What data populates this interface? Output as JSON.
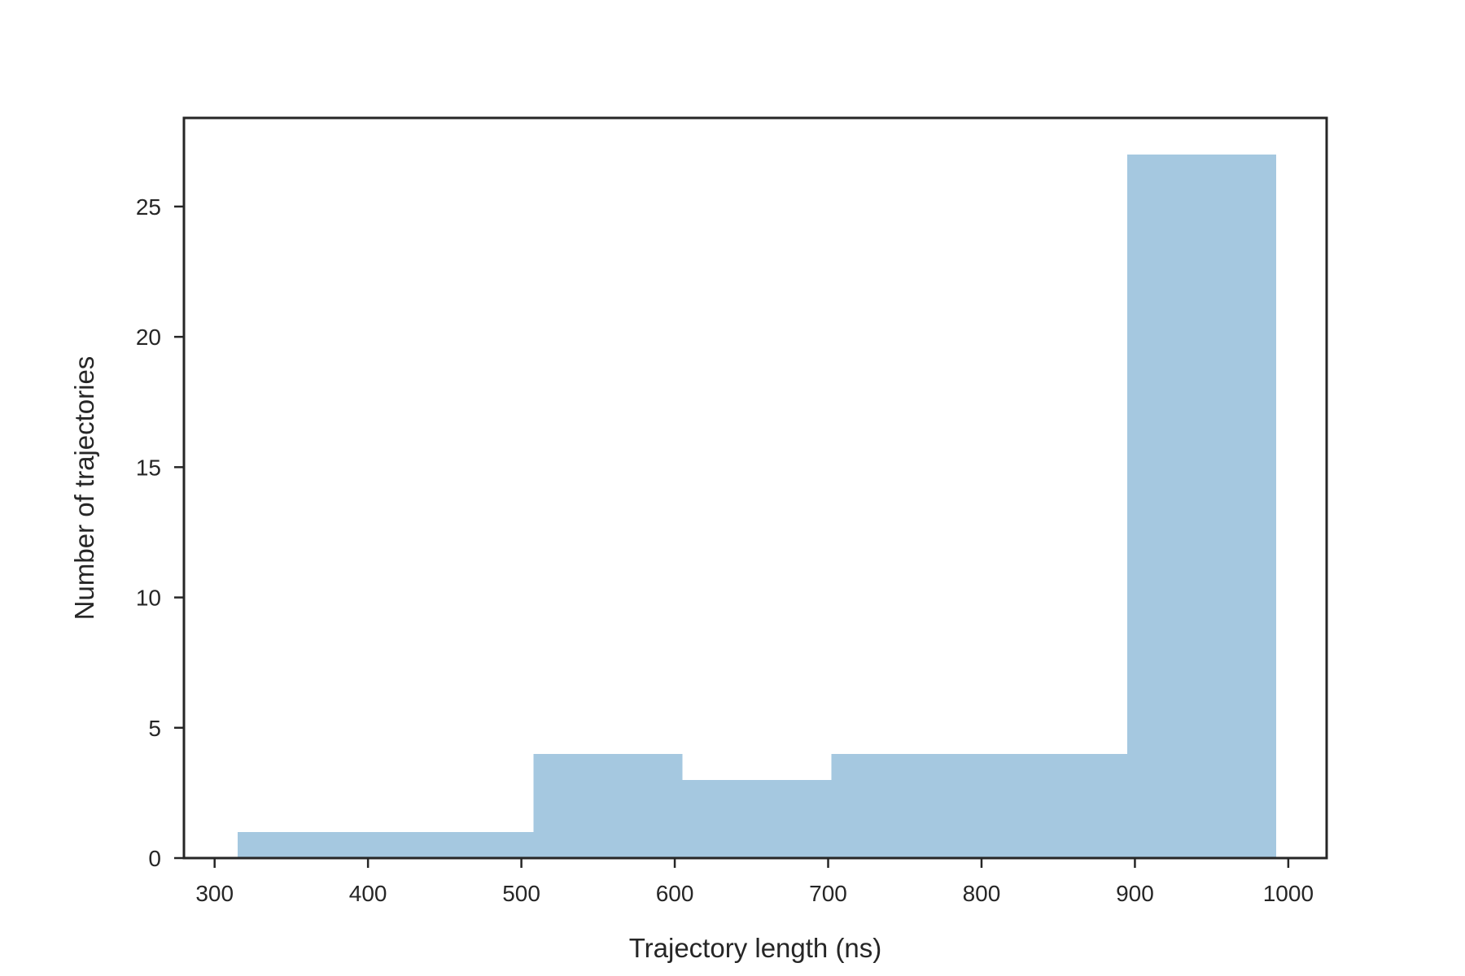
{
  "chart_data": {
    "type": "bar",
    "subtype": "histogram",
    "title": "",
    "xlabel": "Trajectory length (ns)",
    "ylabel": "Number of trajectories",
    "bin_edges": [
      315,
      508,
      605,
      702,
      895,
      992
    ],
    "values": [
      1,
      4,
      3,
      4,
      27
    ],
    "xlim": [
      280,
      1025
    ],
    "ylim": [
      0,
      28.4
    ],
    "xticks": [
      300,
      400,
      500,
      600,
      700,
      800,
      900,
      1000
    ],
    "xtick_labels": [
      "300",
      "400",
      "500",
      "600",
      "700",
      "800",
      "900",
      "1000"
    ],
    "yticks": [
      0,
      5,
      10,
      15,
      20,
      25
    ],
    "ytick_labels": [
      "0",
      "5",
      "10",
      "15",
      "20",
      "25"
    ],
    "bar_color": "#a5c8e0",
    "axis_color": "#262626",
    "grid": false,
    "legend": "none"
  }
}
